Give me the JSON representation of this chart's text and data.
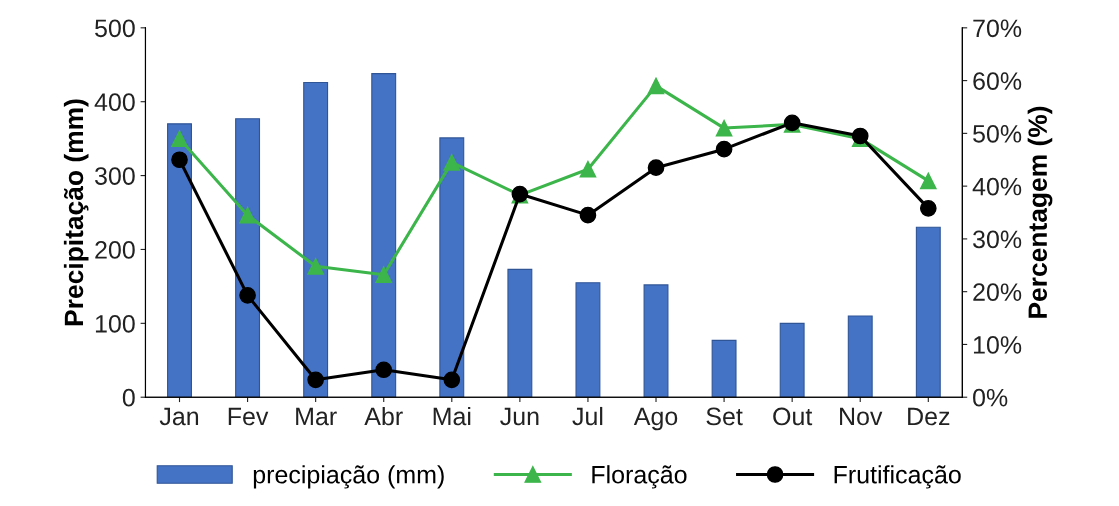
{
  "chart_data": {
    "type": "bar",
    "ylabel": "Precipitação (mm)",
    "y2label": "Percentagem (%)",
    "categories": [
      "Jan",
      "Fev",
      "Mar",
      "Abr",
      "Mai",
      "Jun",
      "Jul",
      "Ago",
      "Set",
      "Out",
      "Nov",
      "Dez"
    ],
    "series": [
      {
        "name": "precipiação (mm)",
        "color": "#4472c4",
        "values": [
          370,
          377,
          426,
          438,
          351,
          173,
          155,
          152,
          77,
          100,
          110,
          230
        ]
      },
      {
        "name": "Floração",
        "type": "line",
        "axis": "y2",
        "marker": "triangle",
        "color": "#3cb54a",
        "values": [
          49,
          34.5,
          24.8,
          23.2,
          44.5,
          38.3,
          43.2,
          59,
          51,
          51.7,
          49,
          41
        ]
      },
      {
        "name": "Frutificação",
        "type": "line",
        "axis": "y2",
        "marker": "circle",
        "color": "#000000",
        "values": [
          45,
          19.3,
          3.3,
          5.2,
          3.3,
          38.5,
          34.5,
          43.5,
          47,
          52,
          49.5,
          35.8
        ]
      }
    ],
    "ylim": [
      0,
      500
    ],
    "yticks": [
      0,
      100,
      200,
      300,
      400,
      500
    ],
    "y2lim": [
      0,
      70
    ],
    "y2ticks": [
      {
        "value": 0,
        "label": "0%"
      },
      {
        "value": 10,
        "label": "10%"
      },
      {
        "value": 20,
        "label": "20%"
      },
      {
        "value": 30,
        "label": "30%"
      },
      {
        "value": 40,
        "label": "40%"
      },
      {
        "value": 50,
        "label": "50%"
      },
      {
        "value": 60,
        "label": "60%"
      },
      {
        "value": 70,
        "label": "70%"
      }
    ],
    "grid": false,
    "legend": "bottom"
  }
}
